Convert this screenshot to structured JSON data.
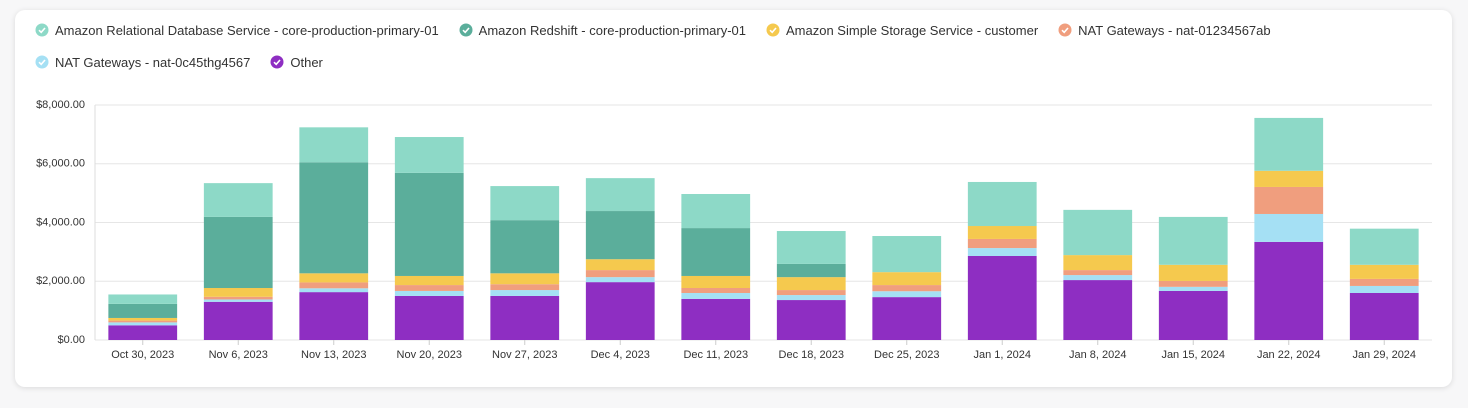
{
  "chart_data": {
    "type": "stacked-bar",
    "categories": [
      "Oct 30, 2023",
      "Nov 6, 2023",
      "Nov 13, 2023",
      "Nov 20, 2023",
      "Nov 27, 2023",
      "Dec 4, 2023",
      "Dec 11, 2023",
      "Dec 18, 2023",
      "Dec 25, 2023",
      "Jan 1, 2024",
      "Jan 8, 2024",
      "Jan 15, 2024",
      "Jan 22, 2024",
      "Jan 29, 2024"
    ],
    "series": [
      {
        "name": "Other",
        "color": "#8e2ec2",
        "values": [
          500,
          1300,
          1630,
          1500,
          1500,
          1970,
          1400,
          1360,
          1460,
          2860,
          2040,
          1670,
          3340,
          1600
        ]
      },
      {
        "name": "NAT Gateways - nat-0c45thg4567",
        "color": "#a5e0f4",
        "values": [
          100,
          80,
          130,
          170,
          200,
          170,
          200,
          170,
          200,
          270,
          170,
          140,
          950,
          240
        ]
      },
      {
        "name": "NAT Gateways - nat-01234567ab",
        "color": "#f09e7e",
        "values": [
          60,
          90,
          200,
          200,
          200,
          240,
          170,
          170,
          210,
          310,
          170,
          200,
          920,
          240
        ]
      },
      {
        "name": "Amazon Simple Storage Service - customer",
        "color": "#f5c94e",
        "values": [
          90,
          300,
          310,
          310,
          370,
          370,
          410,
          440,
          440,
          440,
          510,
          550,
          550,
          480
        ]
      },
      {
        "name": "Amazon Redshift - core-production-primary-01",
        "color": "#5bae9b",
        "values": [
          480,
          2420,
          3780,
          3510,
          1810,
          1640,
          1630,
          450,
          0,
          0,
          0,
          0,
          0,
          0
        ]
      },
      {
        "name": "Amazon Relational Database Service - core-production-primary-01",
        "color": "#8dd9c7",
        "values": [
          320,
          1150,
          1190,
          1220,
          1160,
          1120,
          1160,
          1120,
          1230,
          1500,
          1540,
          1630,
          1800,
          1230
        ]
      }
    ],
    "legend_order": [
      5,
      4,
      3,
      2,
      1,
      0
    ],
    "ylim": [
      0,
      8000
    ],
    "yticks": [
      {
        "value": 0,
        "label": "$0.00"
      },
      {
        "value": 2000,
        "label": "$2,000.00"
      },
      {
        "value": 4000,
        "label": "$4,000.00"
      },
      {
        "value": 6000,
        "label": "$6,000.00"
      },
      {
        "value": 8000,
        "label": "$8,000.00"
      }
    ],
    "grid": true
  }
}
